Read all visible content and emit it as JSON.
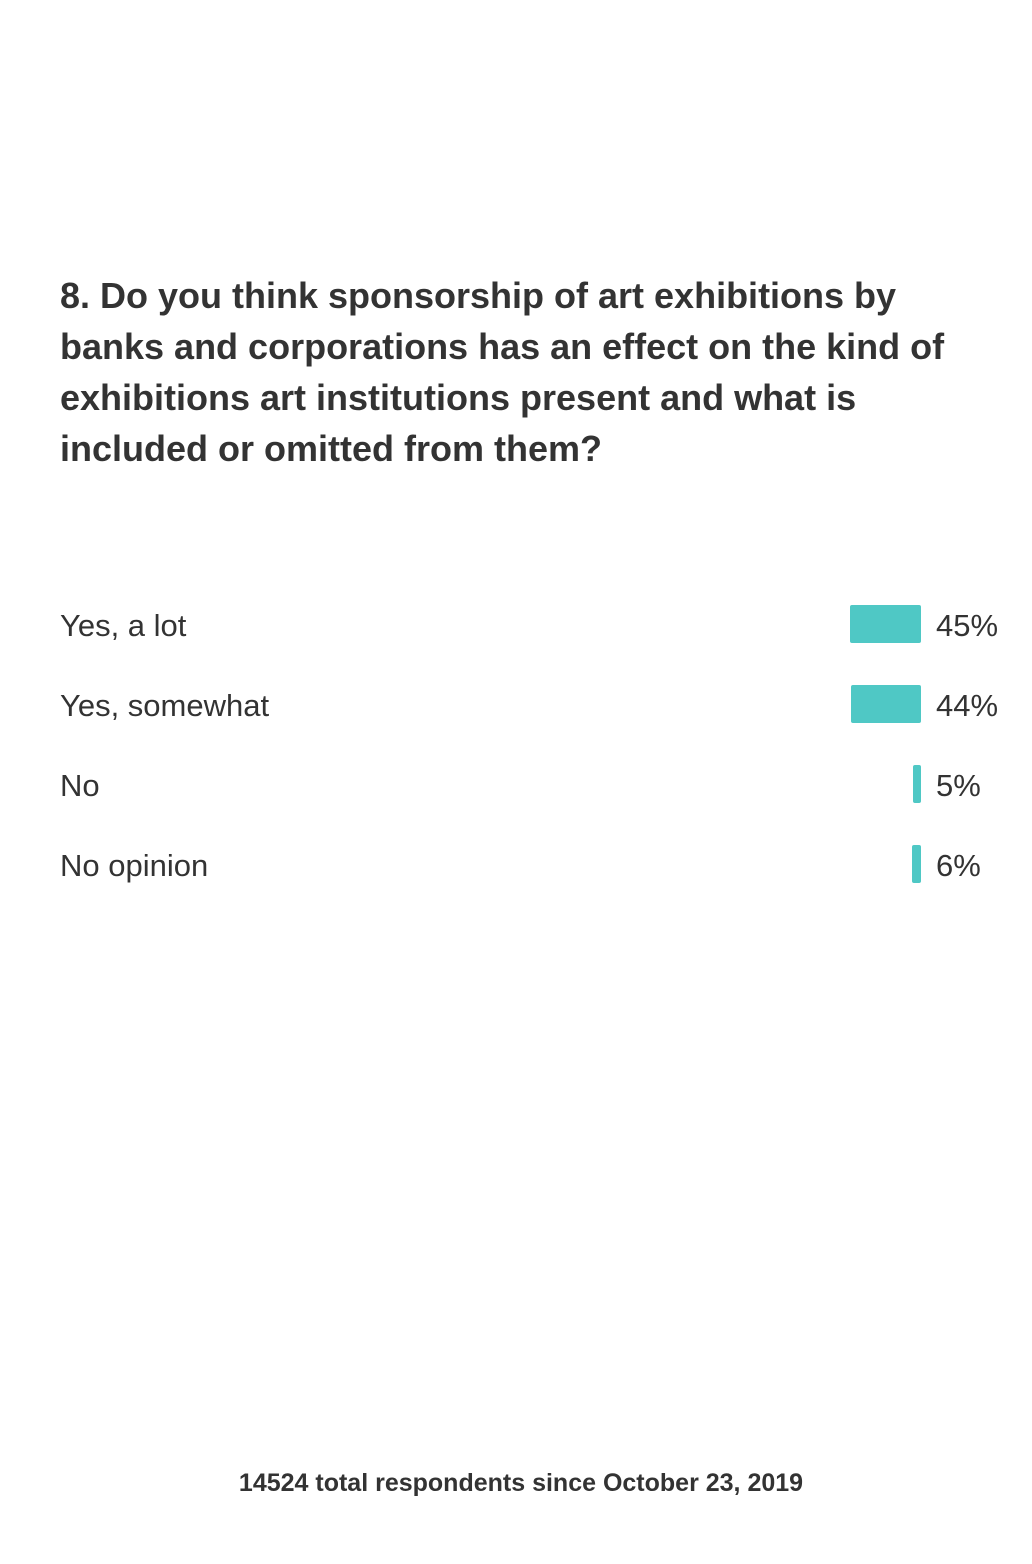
{
  "question": "8. Do you think sponsorship of art exhibitions by banks and corporations has an effect on the kind of exhibitions art institutions present and what is included or omitted from them?",
  "footer": "14524 total respondents since October 23, 2019",
  "colors": {
    "bar": "#4fc8c5",
    "text": "#333333"
  },
  "chart_data": {
    "type": "bar",
    "orientation": "horizontal",
    "categories": [
      "Yes, a lot",
      "Yes, somewhat",
      "No",
      "No opinion"
    ],
    "values": [
      45,
      44,
      5,
      6
    ],
    "value_labels": [
      "45%",
      "44%",
      "5%",
      "6%"
    ],
    "unit": "%",
    "title": "",
    "xlabel": "",
    "ylabel": "",
    "xlim": [
      0,
      100
    ],
    "grid": false,
    "legend": "none"
  }
}
